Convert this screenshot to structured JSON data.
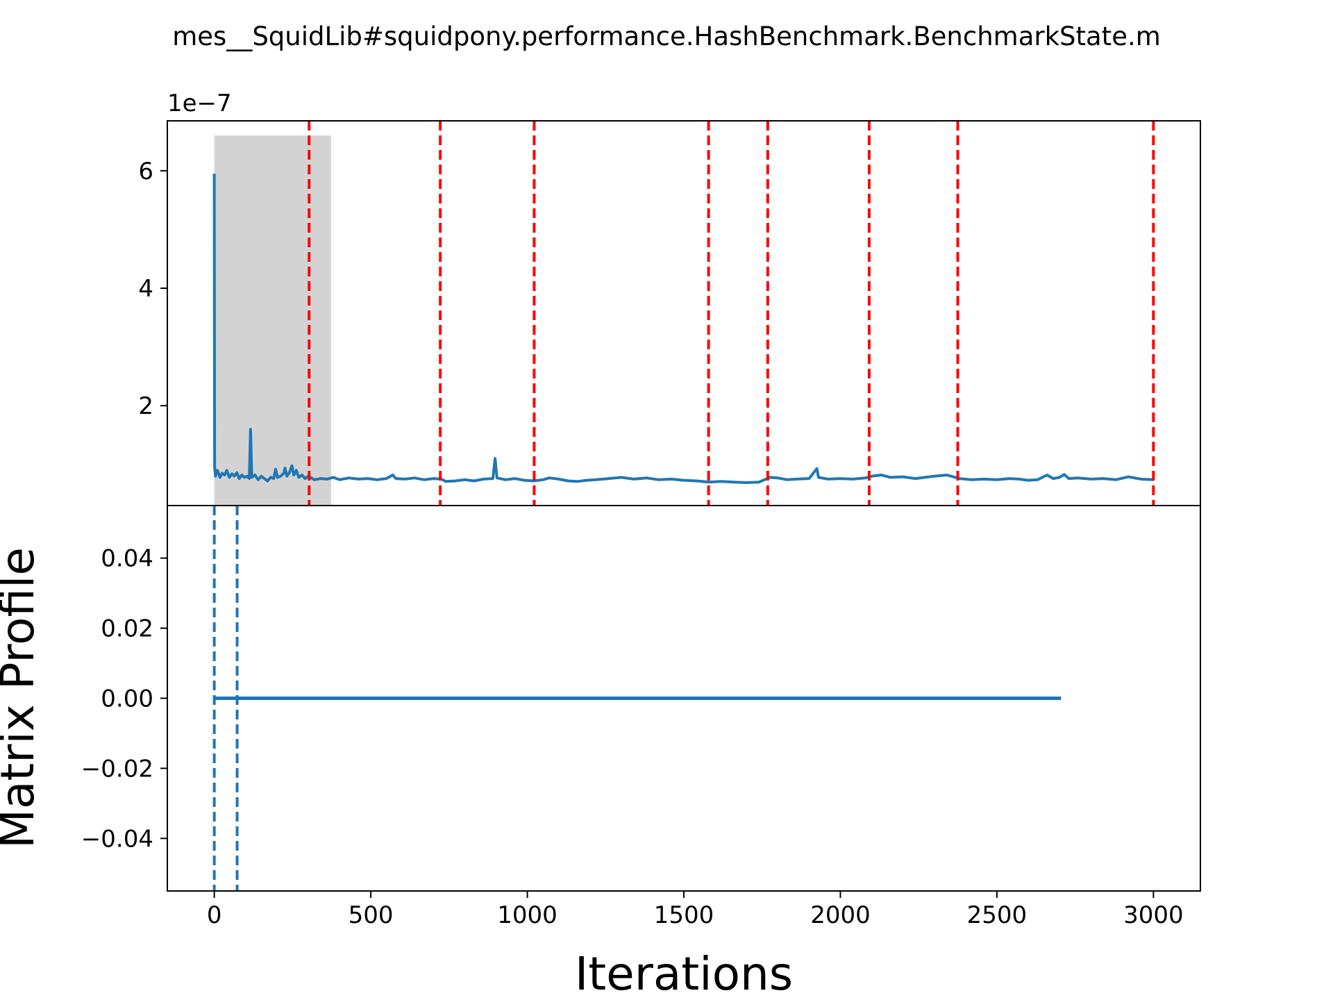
{
  "chart_data": {
    "type": "line",
    "title": "mes__SquidLib#squidpony.performance.HashBenchmark.BenchmarkState.m",
    "xlabel": "Iterations",
    "ylabel": "Matrix Profile",
    "xlim": [
      -150,
      3150
    ],
    "xticks": [
      {
        "value": 0,
        "label": "0"
      },
      {
        "value": 500,
        "label": "500"
      },
      {
        "value": 1000,
        "label": "1000"
      },
      {
        "value": 1500,
        "label": "1500"
      },
      {
        "value": 2000,
        "label": "2000"
      },
      {
        "value": 2500,
        "label": "2500"
      },
      {
        "value": 3000,
        "label": "3000"
      }
    ],
    "top_panel": {
      "ylim": [
        0.3,
        6.85
      ],
      "offset_text": "1e−7",
      "yticks": [
        {
          "value": 2,
          "label": "2"
        },
        {
          "value": 4,
          "label": "4"
        },
        {
          "value": 6,
          "label": "6"
        }
      ],
      "series": {
        "color": "#1f77b4",
        "points": [
          [
            0,
            5.95
          ],
          [
            1,
            0.95
          ],
          [
            4,
            0.8
          ],
          [
            10,
            0.9
          ],
          [
            18,
            0.78
          ],
          [
            25,
            0.85
          ],
          [
            33,
            0.82
          ],
          [
            40,
            0.9
          ],
          [
            48,
            0.78
          ],
          [
            56,
            0.84
          ],
          [
            64,
            0.8
          ],
          [
            72,
            0.86
          ],
          [
            80,
            0.76
          ],
          [
            88,
            0.82
          ],
          [
            96,
            0.78
          ],
          [
            104,
            0.8
          ],
          [
            112,
            0.76
          ],
          [
            116,
            1.6
          ],
          [
            120,
            0.78
          ],
          [
            130,
            0.82
          ],
          [
            140,
            0.74
          ],
          [
            150,
            0.8
          ],
          [
            160,
            0.76
          ],
          [
            170,
            0.72
          ],
          [
            180,
            0.78
          ],
          [
            190,
            0.76
          ],
          [
            196,
            0.92
          ],
          [
            202,
            0.78
          ],
          [
            212,
            0.8
          ],
          [
            222,
            0.85
          ],
          [
            226,
            0.94
          ],
          [
            232,
            0.8
          ],
          [
            240,
            0.86
          ],
          [
            248,
            0.98
          ],
          [
            254,
            0.82
          ],
          [
            262,
            0.9
          ],
          [
            270,
            0.78
          ],
          [
            280,
            0.82
          ],
          [
            290,
            0.76
          ],
          [
            300,
            0.8
          ],
          [
            320,
            0.74
          ],
          [
            340,
            0.76
          ],
          [
            360,
            0.75
          ],
          [
            380,
            0.78
          ],
          [
            400,
            0.74
          ],
          [
            430,
            0.77
          ],
          [
            460,
            0.75
          ],
          [
            490,
            0.76
          ],
          [
            520,
            0.74
          ],
          [
            550,
            0.76
          ],
          [
            570,
            0.82
          ],
          [
            580,
            0.76
          ],
          [
            610,
            0.75
          ],
          [
            640,
            0.77
          ],
          [
            670,
            0.74
          ],
          [
            700,
            0.76
          ],
          [
            725,
            0.75
          ],
          [
            740,
            0.71
          ],
          [
            770,
            0.72
          ],
          [
            800,
            0.74
          ],
          [
            830,
            0.72
          ],
          [
            860,
            0.75
          ],
          [
            890,
            0.76
          ],
          [
            897,
            1.1
          ],
          [
            903,
            0.77
          ],
          [
            930,
            0.74
          ],
          [
            960,
            0.76
          ],
          [
            990,
            0.73
          ],
          [
            1020,
            0.72
          ],
          [
            1050,
            0.74
          ],
          [
            1070,
            0.77
          ],
          [
            1100,
            0.75
          ],
          [
            1130,
            0.72
          ],
          [
            1160,
            0.71
          ],
          [
            1190,
            0.73
          ],
          [
            1220,
            0.74
          ],
          [
            1260,
            0.76
          ],
          [
            1300,
            0.78
          ],
          [
            1340,
            0.75
          ],
          [
            1380,
            0.77
          ],
          [
            1420,
            0.74
          ],
          [
            1460,
            0.75
          ],
          [
            1500,
            0.73
          ],
          [
            1540,
            0.72
          ],
          [
            1580,
            0.7
          ],
          [
            1620,
            0.71
          ],
          [
            1660,
            0.7
          ],
          [
            1700,
            0.69
          ],
          [
            1740,
            0.7
          ],
          [
            1775,
            0.78
          ],
          [
            1800,
            0.77
          ],
          [
            1830,
            0.74
          ],
          [
            1860,
            0.75
          ],
          [
            1900,
            0.76
          ],
          [
            1925,
            0.93
          ],
          [
            1930,
            0.78
          ],
          [
            1960,
            0.75
          ],
          [
            2000,
            0.76
          ],
          [
            2040,
            0.75
          ],
          [
            2080,
            0.77
          ],
          [
            2100,
            0.8
          ],
          [
            2130,
            0.82
          ],
          [
            2160,
            0.78
          ],
          [
            2200,
            0.79
          ],
          [
            2240,
            0.76
          ],
          [
            2270,
            0.78
          ],
          [
            2300,
            0.8
          ],
          [
            2340,
            0.82
          ],
          [
            2380,
            0.76
          ],
          [
            2420,
            0.74
          ],
          [
            2460,
            0.75
          ],
          [
            2500,
            0.74
          ],
          [
            2540,
            0.76
          ],
          [
            2570,
            0.75
          ],
          [
            2600,
            0.73
          ],
          [
            2630,
            0.74
          ],
          [
            2660,
            0.82
          ],
          [
            2680,
            0.76
          ],
          [
            2700,
            0.78
          ],
          [
            2715,
            0.83
          ],
          [
            2730,
            0.76
          ],
          [
            2760,
            0.77
          ],
          [
            2800,
            0.75
          ],
          [
            2840,
            0.76
          ],
          [
            2880,
            0.74
          ],
          [
            2920,
            0.79
          ],
          [
            2960,
            0.75
          ],
          [
            3000,
            0.74
          ]
        ]
      },
      "shaded_region": {
        "x0": 0,
        "x1": 373,
        "y0": 0.3,
        "y1": 6.6,
        "color": "#d3d3d3"
      },
      "vlines": {
        "color": "#ff0000",
        "x": [
          303,
          722,
          1022,
          1579,
          1768,
          2092,
          2375,
          3000
        ]
      }
    },
    "bottom_panel": {
      "ylim": [
        -0.055,
        0.055
      ],
      "yticks": [
        {
          "value": 0.04,
          "label": "0.04"
        },
        {
          "value": 0.02,
          "label": "0.02"
        },
        {
          "value": 0.0,
          "label": "0.00"
        },
        {
          "value": -0.02,
          "label": "−0.02"
        },
        {
          "value": -0.04,
          "label": "−0.04"
        }
      ],
      "series": {
        "color": "#1f77b4",
        "x": [
          0,
          2705
        ],
        "y": [
          0,
          0
        ]
      },
      "vlines": {
        "color": "#1f77b4",
        "x": [
          0,
          73
        ]
      }
    }
  }
}
